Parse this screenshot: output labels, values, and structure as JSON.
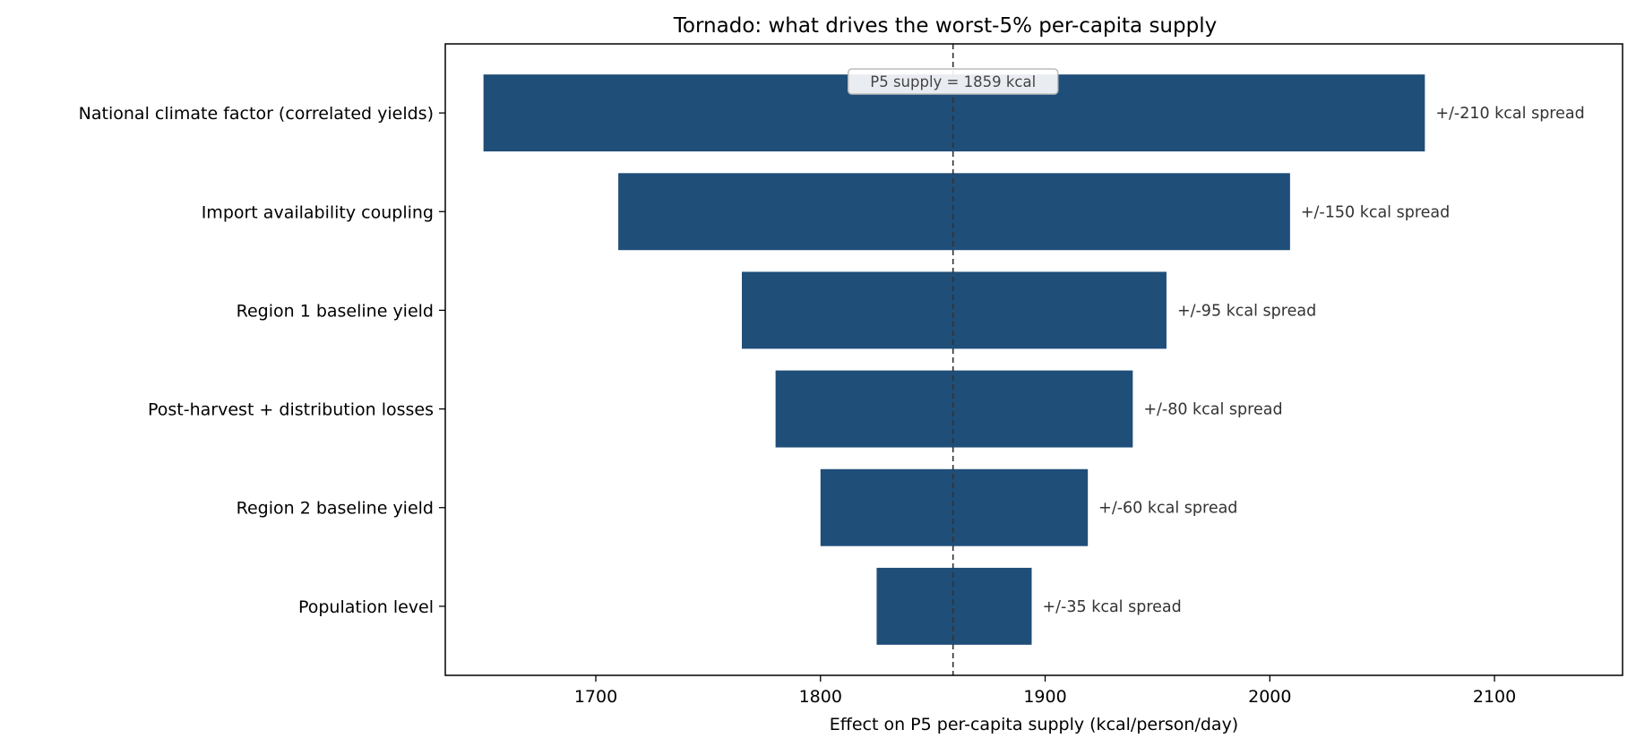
{
  "chart_data": {
    "type": "bar",
    "orientation": "horizontal",
    "title": "Tornado: what drives the worst-5% per-capita supply",
    "xlabel": "Effect on P5 per-capita supply  (kcal/person/day)",
    "ylabel": "",
    "xlim": [
      1633,
      2157
    ],
    "xticks": [
      1700,
      1800,
      1900,
      2000,
      2100
    ],
    "grid": false,
    "bar_color": "#1f4e79",
    "reference": {
      "value": 1859,
      "label": "P5 supply = 1859 kcal",
      "style": "dashed"
    },
    "categories": [
      "National climate factor (correlated yields)",
      "Import availability coupling",
      "Region 1 baseline yield",
      "Post-harvest + distribution losses",
      "Region 2 baseline yield",
      "Population level"
    ],
    "bars": [
      {
        "low": 1650,
        "high": 2069,
        "label": "+/-210 kcal spread"
      },
      {
        "low": 1710,
        "high": 2009,
        "label": "+/-150 kcal spread"
      },
      {
        "low": 1765,
        "high": 1954,
        "label": "+/-95 kcal spread"
      },
      {
        "low": 1780,
        "high": 1939,
        "label": "+/-80 kcal spread"
      },
      {
        "low": 1800,
        "high": 1919,
        "label": "+/-60 kcal spread"
      },
      {
        "low": 1825,
        "high": 1894,
        "label": "+/-35 kcal spread"
      }
    ]
  }
}
